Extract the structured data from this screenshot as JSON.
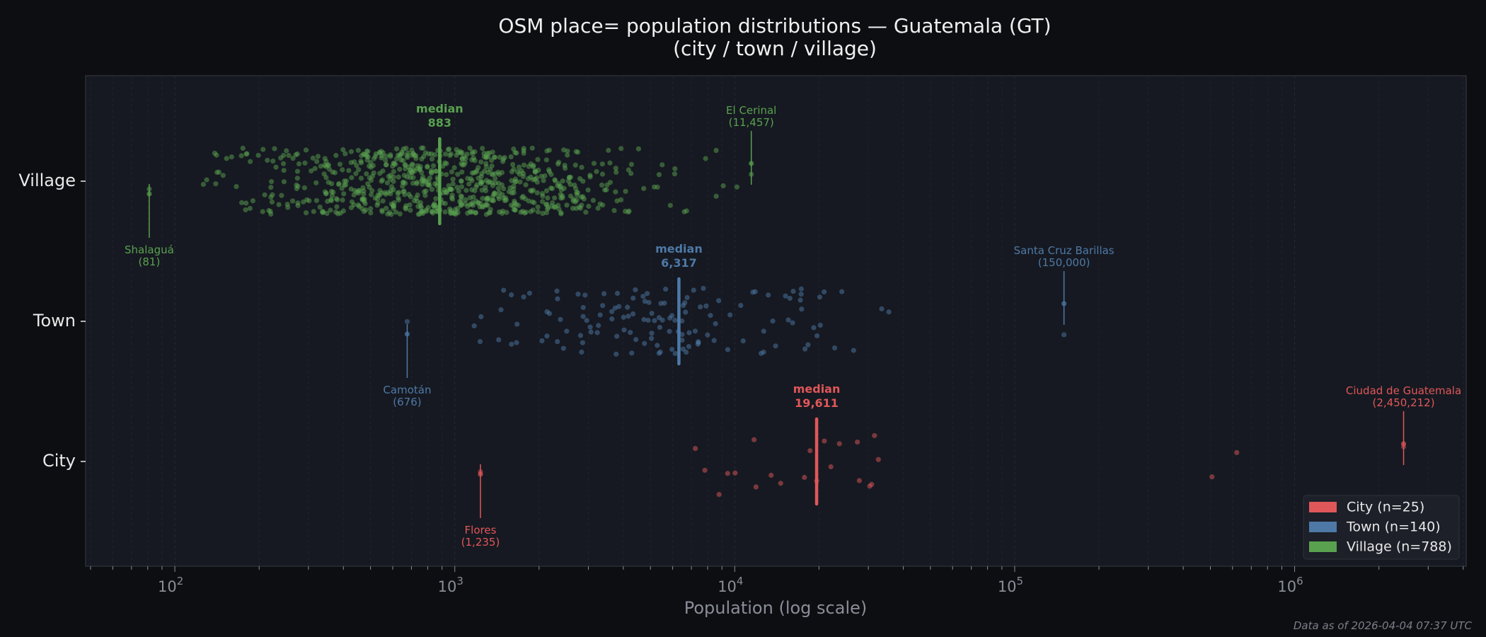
{
  "chart_data": {
    "type": "scatter",
    "title": "OSM place= population distributions — Guatemala (GT)",
    "subtitle": "(city / town / village)",
    "xlabel": "Population (log scale)",
    "xscale": "log",
    "xlim": [
      48,
      4100000
    ],
    "xticks": [
      {
        "base": "10",
        "exp": "2",
        "value": 100
      },
      {
        "base": "10",
        "exp": "3",
        "value": 1000
      },
      {
        "base": "10",
        "exp": "4",
        "value": 10000
      },
      {
        "base": "10",
        "exp": "5",
        "value": 100000
      },
      {
        "base": "10",
        "exp": "6",
        "value": 1000000
      }
    ],
    "categories": [
      "Village",
      "Town",
      "City"
    ],
    "grid": "vertical minor dashed",
    "legend_position": "bottom-right",
    "series": [
      {
        "name": "City",
        "legend": "City  (n=25)",
        "n": 25,
        "color": "#e05759",
        "median": 19611,
        "median_label": "median",
        "median_value": "19,611",
        "values": [
          1235,
          7230,
          7820,
          8790,
          9430,
          10030,
          11720,
          11910,
          13490,
          14590,
          17740,
          18580,
          19611,
          20890,
          22050,
          23650,
          27420,
          27860,
          30350,
          30830,
          31560,
          32580,
          506700,
          621000,
          2450212
        ],
        "annotations": [
          {
            "label": "Flores",
            "value_label": "(1,235)",
            "value": 1235,
            "side": "below"
          },
          {
            "label": "Ciudad de Guatemala",
            "value_label": "(2,450,212)",
            "value": 2450212,
            "side": "above"
          }
        ]
      },
      {
        "name": "Town",
        "legend": "Town  (n=140)",
        "n": 140,
        "color": "#4e79a7",
        "median": 6317,
        "median_label": "median",
        "median_value": "6,317",
        "min": 676,
        "max": 150000,
        "annotations": [
          {
            "label": "Camotán",
            "value_label": "(676)",
            "value": 676,
            "side": "below"
          },
          {
            "label": "Santa Cruz Barillas",
            "value_label": "(150,000)",
            "value": 150000,
            "side": "above"
          }
        ]
      },
      {
        "name": "Village",
        "legend": "Village  (n=788)",
        "n": 788,
        "color": "#59a14f",
        "median": 883,
        "median_label": "median",
        "median_value": "883",
        "min": 81,
        "max": 11457,
        "annotations": [
          {
            "label": "Shalaguá",
            "value_label": "(81)",
            "value": 81,
            "side": "below"
          },
          {
            "label": "El Cerinal",
            "value_label": "(11,457)",
            "value": 11457,
            "side": "above"
          }
        ]
      }
    ]
  },
  "footer": "Data as of 2026-04-04 07:37 UTC"
}
